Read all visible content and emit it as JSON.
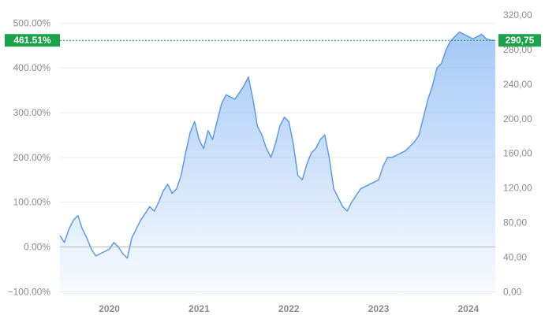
{
  "chart_data": {
    "type": "area",
    "title": "",
    "xlabel": "",
    "ylabel": "",
    "x_range": [
      2019.45,
      2024.3
    ],
    "x_ticks": [
      {
        "value": 2020.0,
        "label": "2020"
      },
      {
        "value": 2021.0,
        "label": "2021"
      },
      {
        "value": 2022.0,
        "label": "2022"
      },
      {
        "value": 2023.0,
        "label": "2023"
      },
      {
        "value": 2024.0,
        "label": "2024"
      }
    ],
    "y_left": {
      "range": [
        -110,
        520
      ],
      "ticks": [
        {
          "value": -100,
          "label": "−100.00%"
        },
        {
          "value": 0,
          "label": "0.00%"
        },
        {
          "value": 100,
          "label": "100.00%"
        },
        {
          "value": 200,
          "label": "200.00%"
        },
        {
          "value": 300,
          "label": "300.00%"
        },
        {
          "value": 400,
          "label": "400.00%"
        },
        {
          "value": 500,
          "label": "500.00%"
        }
      ]
    },
    "y_right": {
      "ticks": [
        {
          "value": 0,
          "label": "0,00"
        },
        {
          "value": 40,
          "label": "40,00"
        },
        {
          "value": 80,
          "label": "80,00"
        },
        {
          "value": 120,
          "label": "120,00"
        },
        {
          "value": 160,
          "label": "160,00"
        },
        {
          "value": 200,
          "label": "200,00"
        },
        {
          "value": 240,
          "label": "240,00"
        },
        {
          "value": 280,
          "label": "280,00"
        },
        {
          "value": 320,
          "label": "320,00"
        }
      ]
    },
    "grid": true,
    "baseline": 0,
    "current": {
      "percent": 461.51,
      "percent_label": "461.51%",
      "price": 290.75,
      "price_label": "290,75"
    },
    "series": [
      {
        "x": [
          2019.45,
          2019.5,
          2019.55,
          2019.6,
          2019.65,
          2019.7,
          2019.75,
          2019.8,
          2019.85,
          2019.9,
          2019.95,
          2020.0,
          2020.05,
          2020.1,
          2020.15,
          2020.2,
          2020.25,
          2020.3,
          2020.35,
          2020.4,
          2020.45,
          2020.5,
          2020.55,
          2020.6,
          2020.65,
          2020.7,
          2020.75,
          2020.8,
          2020.85,
          2020.9,
          2020.95,
          2021.0,
          2021.05,
          2021.1,
          2021.15,
          2021.2,
          2021.25,
          2021.3,
          2021.35,
          2021.4,
          2021.45,
          2021.5,
          2021.55,
          2021.6,
          2021.65,
          2021.7,
          2021.75,
          2021.8,
          2021.85,
          2021.9,
          2021.95,
          2022.0,
          2022.05,
          2022.1,
          2022.15,
          2022.2,
          2022.25,
          2022.3,
          2022.35,
          2022.4,
          2022.45,
          2022.5,
          2022.55,
          2022.6,
          2022.65,
          2022.7,
          2022.75,
          2022.8,
          2022.85,
          2022.9,
          2022.95,
          2023.0,
          2023.05,
          2023.1,
          2023.15,
          2023.2,
          2023.25,
          2023.3,
          2023.35,
          2023.4,
          2023.45,
          2023.5,
          2023.55,
          2023.6,
          2023.65,
          2023.7,
          2023.75,
          2023.8,
          2023.85,
          2023.9,
          2023.95,
          2024.0,
          2024.05,
          2024.1,
          2024.15,
          2024.2,
          2024.25,
          2024.3
        ],
        "values": [
          25,
          10,
          40,
          60,
          70,
          40,
          20,
          -5,
          -20,
          -15,
          -10,
          -5,
          10,
          0,
          -15,
          -25,
          20,
          40,
          60,
          75,
          90,
          80,
          100,
          125,
          140,
          120,
          130,
          160,
          210,
          255,
          280,
          240,
          220,
          260,
          240,
          280,
          320,
          340,
          335,
          330,
          345,
          360,
          380,
          330,
          270,
          250,
          220,
          200,
          230,
          270,
          290,
          280,
          230,
          160,
          150,
          185,
          210,
          220,
          240,
          250,
          200,
          130,
          110,
          90,
          80,
          100,
          115,
          130,
          135,
          140,
          145,
          150,
          180,
          200,
          200,
          205,
          210,
          215,
          225,
          235,
          250,
          290,
          330,
          360,
          400,
          410,
          440,
          460,
          470,
          480,
          475,
          470,
          465,
          470,
          475,
          465,
          462,
          461.51
        ]
      }
    ]
  }
}
